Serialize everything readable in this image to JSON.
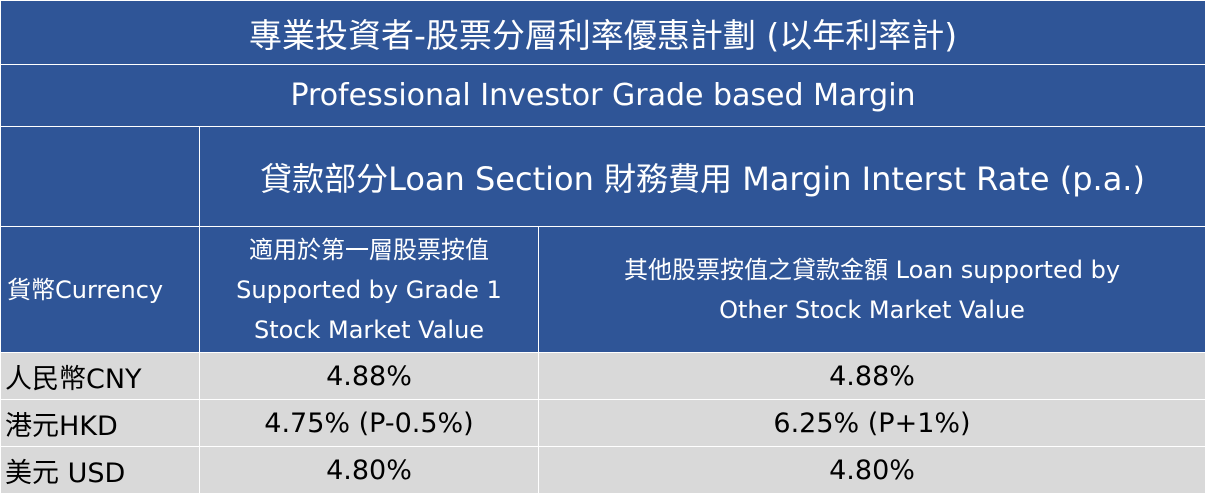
{
  "table": {
    "title": "專業投資者-股票分層利率優惠計劃 (以年利率計)",
    "subtitle": "Professional Investor Grade based Margin",
    "loan_section_header": "貸款部分Loan Section 財務費用 Margin Interst Rate (p.a.)",
    "col_currency": "貨幣Currency",
    "col_grade1": {
      "line1": "適用於第一層股票按值",
      "line2": "Supported by Grade 1",
      "line3": "Stock Market Value"
    },
    "col_other": {
      "line1": "其他股票按值之貸款金額 Loan supported by",
      "line2": "Other Stock Market Value"
    },
    "rows": [
      {
        "currency": "人民幣CNY",
        "grade1_rate": "4.88%",
        "other_rate": "4.88%"
      },
      {
        "currency": "港元HKD",
        "grade1_rate": "4.75% (P-0.5%)",
        "other_rate": "6.25% (P+1%)"
      },
      {
        "currency": "美元 USD",
        "grade1_rate": "4.80%",
        "other_rate": "4.80%"
      }
    ]
  },
  "colors": {
    "header_bg": "#2f5597",
    "header_text": "#ffffff",
    "body_bg": "#d9d9d9",
    "body_text": "#000000"
  }
}
